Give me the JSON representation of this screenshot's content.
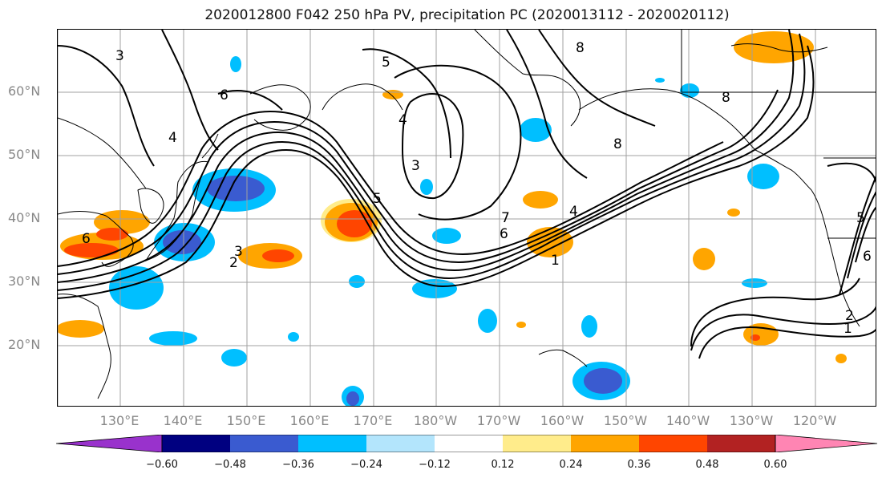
{
  "title": "2020012800 F042 250 hPa PV, precipitation PC (2020013112 - 2020020112)",
  "lat_labels": [
    "60°N",
    "50°N",
    "40°N",
    "30°N",
    "20°N"
  ],
  "lon_labels": [
    "130°E",
    "140°E",
    "150°E",
    "160°E",
    "170°E",
    "180°W",
    "170°W",
    "160°W",
    "150°W",
    "140°W",
    "130°W",
    "120°W"
  ],
  "colorbar": {
    "ticks": [
      "−0.60",
      "−0.48",
      "−0.36",
      "−0.24",
      "−0.12",
      "0.12",
      "0.24",
      "0.36",
      "0.48",
      "0.60"
    ],
    "colors": [
      "#9932cc",
      "#000080",
      "#3a5bd0",
      "#00bfff",
      "#b3e5fc",
      "#ffffff",
      "#ffec8b",
      "#ffa500",
      "#ff4500",
      "#b22222",
      "#ff85b3"
    ]
  },
  "contour_labels": [
    "3",
    "6",
    "4",
    "3",
    "5",
    "4",
    "8",
    "8",
    "8",
    "6",
    "5",
    "7",
    "6",
    "4",
    "1",
    "2",
    "3",
    "6",
    "2",
    "1",
    "5"
  ],
  "colors": {
    "orange": "#ffa500",
    "red": "#ff4500",
    "yellow": "#ffec8b",
    "cyan": "#00bfff",
    "blue": "#3a5bd0",
    "lightblue": "#b3e5fc",
    "grid": "#a0a0a0"
  }
}
